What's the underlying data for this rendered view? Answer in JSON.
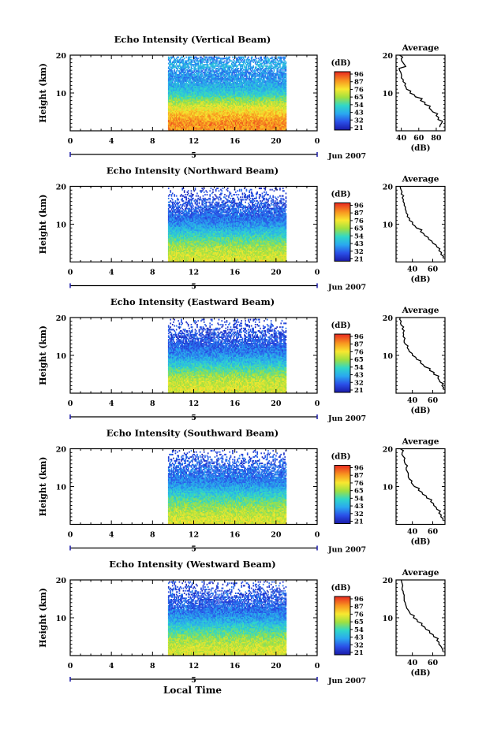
{
  "figure": {
    "x_axis_title": "Local Time",
    "date_label": "Jun 2007",
    "y_axis_title": "Height (km)",
    "unit_label": "(dB)",
    "average_title": "Average",
    "average_xlabel": "(dB)",
    "colorbar_ticks": [
      "96",
      "87",
      "76",
      "65",
      "54",
      "43",
      "32",
      "21"
    ]
  },
  "chart_data": [
    {
      "type": "heatmap",
      "title": "Echo Intensity (Vertical Beam)",
      "xlim": [
        0,
        24
      ],
      "ylim": [
        0,
        20
      ],
      "x_ticks": [
        "0",
        "4",
        "8",
        "12",
        "16",
        "20",
        "0"
      ],
      "y_ticks": [
        "10",
        "20"
      ],
      "data_x_range": [
        9.5,
        21
      ],
      "profile_x_ticks": [
        "40",
        "60",
        "80"
      ],
      "profile_xlim": [
        34,
        90
      ],
      "profile": {
        "height": [
          1,
          2,
          3,
          4,
          5,
          6,
          7,
          8,
          9,
          10,
          11,
          12,
          13,
          14,
          15,
          16,
          17,
          18,
          19,
          20
        ],
        "db": [
          84,
          86,
          82,
          80,
          76,
          72,
          67,
          62,
          56,
          50,
          46,
          44,
          42,
          40,
          40,
          38,
          45,
          42,
          40,
          38
        ]
      }
    },
    {
      "type": "heatmap",
      "title": "Echo Intensity (Northward Beam)",
      "xlim": [
        0,
        24
      ],
      "ylim": [
        0,
        20
      ],
      "x_ticks": [
        "0",
        "4",
        "8",
        "12",
        "16",
        "20",
        "0"
      ],
      "y_ticks": [
        "10",
        "20"
      ],
      "data_x_range": [
        9.5,
        21
      ],
      "profile_x_ticks": [
        "40",
        "60"
      ],
      "profile_xlim": [
        24,
        72
      ],
      "profile": {
        "height": [
          1,
          2,
          3,
          4,
          5,
          6,
          7,
          8,
          9,
          10,
          11,
          12,
          13,
          14,
          15,
          16,
          17,
          18,
          19,
          20
        ],
        "db": [
          70,
          68,
          66,
          64,
          60,
          56,
          52,
          48,
          44,
          40,
          37,
          35,
          34,
          33,
          32,
          31,
          30,
          29,
          29,
          28
        ]
      }
    },
    {
      "type": "heatmap",
      "title": "Echo Intensity (Eastward Beam)",
      "xlim": [
        0,
        24
      ],
      "ylim": [
        0,
        20
      ],
      "x_ticks": [
        "0",
        "4",
        "8",
        "12",
        "16",
        "20",
        "0"
      ],
      "y_ticks": [
        "10",
        "20"
      ],
      "data_x_range": [
        9.5,
        21
      ],
      "profile_x_ticks": [
        "40",
        "60"
      ],
      "profile_xlim": [
        24,
        72
      ],
      "profile": {
        "height": [
          1,
          2,
          3,
          4,
          5,
          6,
          7,
          8,
          9,
          10,
          11,
          12,
          13,
          14,
          15,
          16,
          17,
          18,
          19,
          20
        ],
        "db": [
          70,
          69,
          67,
          65,
          61,
          57,
          52,
          48,
          44,
          40,
          37,
          35,
          33,
          32,
          31,
          31,
          30,
          29,
          29,
          28
        ]
      }
    },
    {
      "type": "heatmap",
      "title": "Echo Intensity (Southward Beam)",
      "xlim": [
        0,
        24
      ],
      "ylim": [
        0,
        20
      ],
      "x_ticks": [
        "0",
        "4",
        "8",
        "12",
        "16",
        "20",
        "0"
      ],
      "y_ticks": [
        "10",
        "20"
      ],
      "data_x_range": [
        9.5,
        21
      ],
      "profile_x_ticks": [
        "40",
        "60"
      ],
      "profile_xlim": [
        24,
        72
      ],
      "profile": {
        "height": [
          1,
          2,
          3,
          4,
          5,
          6,
          7,
          8,
          9,
          10,
          11,
          12,
          13,
          14,
          15,
          16,
          17,
          18,
          19,
          20
        ],
        "db": [
          70,
          68,
          66,
          64,
          61,
          58,
          54,
          50,
          46,
          42,
          39,
          37,
          36,
          35,
          34,
          33,
          32,
          31,
          30,
          28
        ]
      }
    },
    {
      "type": "heatmap",
      "title": "Echo Intensity (Westward Beam)",
      "xlim": [
        0,
        24
      ],
      "ylim": [
        0,
        20
      ],
      "x_ticks": [
        "0",
        "4",
        "8",
        "12",
        "16",
        "20",
        "0"
      ],
      "y_ticks": [
        "10",
        "20"
      ],
      "data_x_range": [
        9.5,
        21
      ],
      "profile_x_ticks": [
        "40",
        "60"
      ],
      "profile_xlim": [
        24,
        72
      ],
      "profile": {
        "height": [
          1,
          2,
          3,
          4,
          5,
          6,
          7,
          8,
          9,
          10,
          11,
          12,
          13,
          14,
          15,
          16,
          17,
          18,
          19,
          20
        ],
        "db": [
          70,
          69,
          66,
          64,
          61,
          57,
          53,
          49,
          45,
          41,
          38,
          36,
          34,
          33,
          32,
          32,
          31,
          30,
          30,
          29
        ]
      }
    }
  ]
}
